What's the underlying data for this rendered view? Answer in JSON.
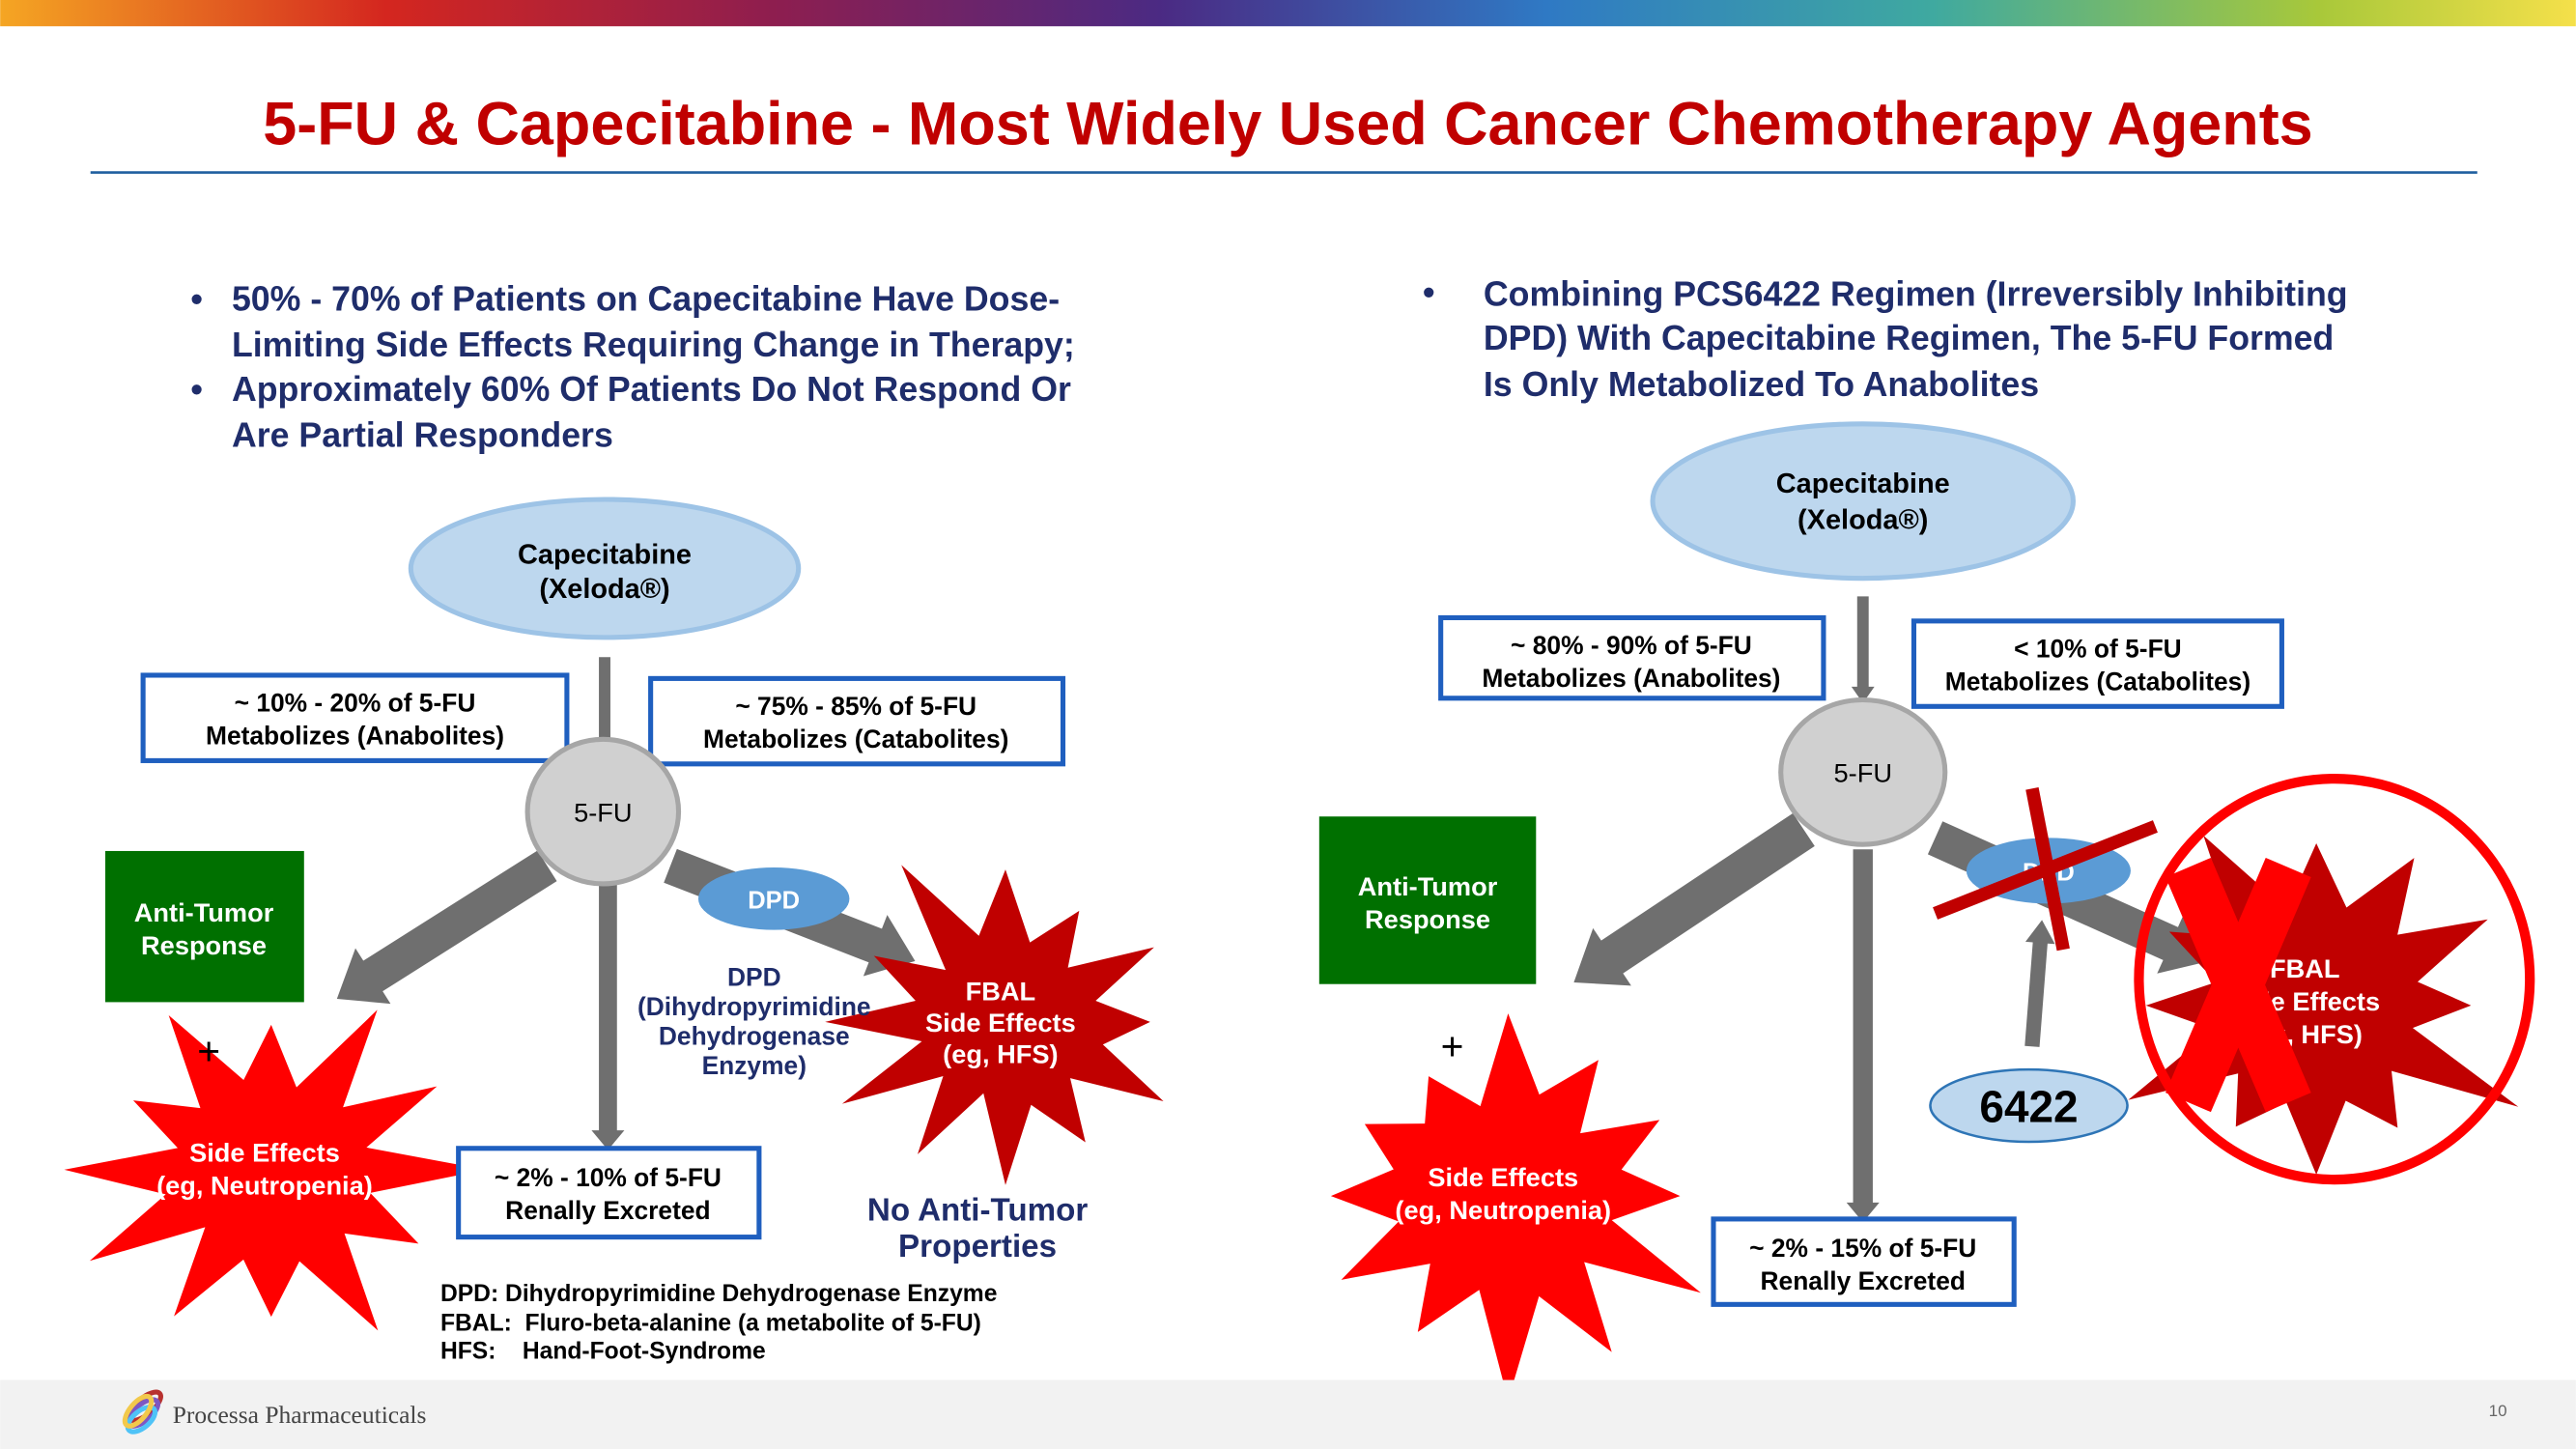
{
  "title": "5-FU & Capecitabine - Most Widely Used Cancer Chemotherapy Agents",
  "colors": {
    "title": "#c00000",
    "navy": "#1f2d6b",
    "green": "#007000",
    "red": "#ff0000",
    "dark_red": "#c00000",
    "blue_ellipse": "#bdd7ee",
    "dpd_blue": "#5b9bd5",
    "box_border": "#1f5fbf"
  },
  "left": {
    "bullets": [
      {
        "lines": [
          "50% - 70% of Patients on Capecitabine Have Dose-",
          "Limiting Side Effects Requiring Change in Therapy;"
        ]
      },
      {
        "lines": [
          "Approximately 60% Of Patients Do Not Respond Or",
          "Are Partial Responders"
        ]
      }
    ],
    "drug": [
      "Capecitabine",
      "(Xeloda®)"
    ],
    "anabolites": [
      "~ 10% - 20% of 5-FU",
      "Metabolizes (Anabolites)"
    ],
    "catabolites": [
      "~ 75% - 85% of 5-FU",
      "Metabolizes (Catabolites)"
    ],
    "fu": "5-FU",
    "anti_tumor": [
      "Anti-Tumor",
      "Response"
    ],
    "dpd": "DPD",
    "dpd_desc": [
      "DPD",
      "(Dihydropyrimidine",
      "Dehydrogenase",
      "Enzyme)"
    ],
    "fbal": [
      "FBAL",
      "Side Effects",
      "(eg, HFS)"
    ],
    "plus": "+",
    "side_effects": [
      "Side Effects",
      "(eg, Neutropenia)"
    ],
    "renal": [
      "~ 2% - 10% of 5-FU",
      "Renally Excreted"
    ],
    "no_anti_tumor": [
      "No Anti-Tumor",
      "Properties"
    ],
    "footnotes": [
      "DPD: Dihydropyrimidine Dehydrogenase Enzyme",
      "FBAL:  Fluro-beta-alanine (a metabolite of 5-FU)",
      "HFS:    Hand-Foot-Syndrome"
    ]
  },
  "right": {
    "bullet": [
      "Combining PCS6422 Regimen (Irreversibly Inhibiting",
      "DPD) With Capecitabine Regimen, The 5-FU Formed",
      "Is Only Metabolized To Anabolites"
    ],
    "drug": [
      "Capecitabine",
      "(Xeloda®)"
    ],
    "anabolites": [
      "~ 80% - 90% of 5-FU",
      "Metabolizes (Anabolites)"
    ],
    "catabolites": [
      "< 10% of 5-FU",
      "Metabolizes (Catabolites)"
    ],
    "fu": "5-FU",
    "anti_tumor": [
      "Anti-Tumor",
      "Response"
    ],
    "dpd": "DPD",
    "inhibitor": "6422",
    "fbal": [
      "FBAL",
      "Side Effects",
      "(eg, HFS)"
    ],
    "plus": "+",
    "side_effects": [
      "Side Effects",
      "(eg, Neutropenia)"
    ],
    "renal": [
      "~ 2% - 15% of 5-FU",
      "Renally Excreted"
    ]
  },
  "footer": {
    "company": "Processa Pharmaceuticals",
    "page": "10"
  }
}
